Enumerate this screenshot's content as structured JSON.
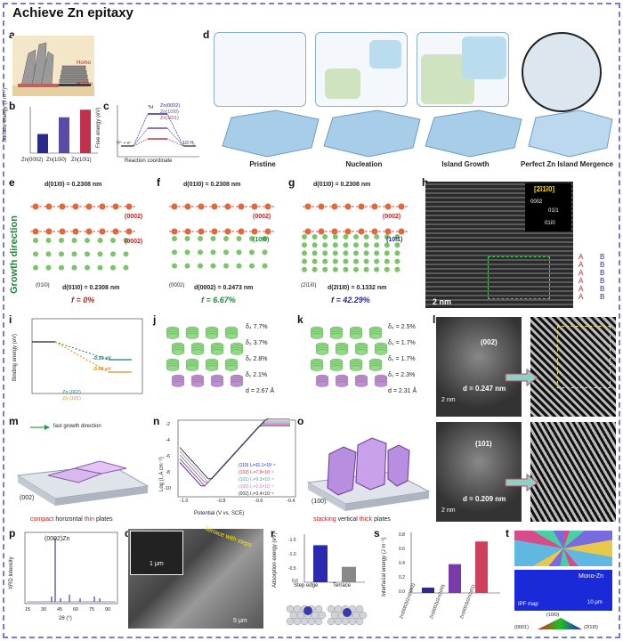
{
  "title": "Achieve Zn epitaxy",
  "panels": {
    "a": "a",
    "b": "b",
    "c": "c",
    "d": "d",
    "e": "e",
    "f": "f",
    "g": "g",
    "h": "h",
    "i": "i",
    "j": "j",
    "k": "k",
    "l": "l",
    "m": "m",
    "n": "n",
    "o": "o",
    "p": "p",
    "q": "q",
    "r": "r",
    "s": "s",
    "t": "t"
  },
  "a": {
    "homo": "Homo",
    "hetero": "Hetero"
  },
  "b": {
    "ylabel": "Surface energy (J m⁻²)",
    "cats": [
      "Zn(0002)",
      "Zn(10ī0)",
      "Zn(10ī1)"
    ],
    "values": [
      0.33,
      0.62,
      0.75
    ],
    "colors": [
      "#2a2a8a",
      "#5b4aa8",
      "#c0304a"
    ]
  },
  "c": {
    "ylabel": "Free energy (eV)",
    "xlabel": "Reaction coordinate",
    "legend": [
      "Zn(0002)",
      "Zn(10ī0)",
      "Zn(10ī1)"
    ],
    "label_h": "H⁺ + e⁻",
    "label_star": "*H",
    "label_half": "1/2 H₂"
  },
  "d": {
    "stages": [
      "Pristine",
      "Nucleation",
      "Island Growth",
      "Perfect Zn Island Mergence"
    ]
  },
  "e": {
    "d_top": "d(01ī0) = 0.2308 nm",
    "d_bottom": "d(01ī0) = 0.2308 nm",
    "plane_top": "(0002)",
    "plane_mid": "(0002)",
    "plane_bottom": "(01ī0)",
    "f": "f = 0%"
  },
  "f": {
    "d_top": "d(01ī0) = 0.2308 nm",
    "d_bottom": "d(0002) = 0.2473 nm",
    "plane_top": "(0002)",
    "plane_mid": "(10ī0)",
    "plane_bottom": "(0002)",
    "f": "f = 6.67%"
  },
  "g": {
    "d_top": "d(01ī0) = 0.2308 nm",
    "d_bottom": "d(2ī1ī0) = 0.1332 nm",
    "plane_top": "(0002)",
    "plane_mid": "(10ī1)",
    "plane_bottom": "(2ī1ī0)",
    "f": "f = 42.29%"
  },
  "growth": "Growth direction",
  "h": {
    "zone": "[2ī1ī0]",
    "p1": "0002",
    "p2": "01ī1",
    "p3": "01ī0",
    "scale": "2 nm",
    "stack": [
      "A",
      "B",
      "A",
      "B",
      "A",
      "B",
      "A",
      "B",
      "A",
      "B",
      "A",
      "B"
    ]
  },
  "i": {
    "ylabel": "Binding energy (eV)",
    "v1": "-0.35 eV",
    "v2": "-0.48 eV",
    "leg1": "Zn (002)",
    "leg2": "Zn (101)"
  },
  "j": {
    "rows": [
      "δ₄ 7.7%",
      "δ₃ 3.7%",
      "δ₂ 2.8%",
      "δ₁ 2.1%",
      "d = 2.67 Å"
    ]
  },
  "k": {
    "rows": [
      "δ₄ = 2.5%",
      "δ₃ = 1.7%",
      "δ₂ = 1.7%",
      "δ₁ = 2.3%",
      "d = 2.31 Å"
    ]
  },
  "l": {
    "top_plane": "(002)",
    "top_d": "d = 0.247 nm",
    "bot_plane": "(101)",
    "bot_d": "d = 0.209 nm",
    "scale": "2 nm"
  },
  "m": {
    "arrow": "fast growth direction",
    "plane": "(002)",
    "caption_pre": "compact",
    "caption_mid": " horizontal ",
    "caption_thin": "thin",
    "caption_post": " plates"
  },
  "n": {
    "ylabel": "Log (I, A cm⁻²)",
    "xlabel": "Potential (V vs. SCE)",
    "legend": [
      "(110)  I₀=11.1×10⁻⁴",
      "(102)  I₀=7.8×10⁻⁴",
      "(101)  I₀=9.3×10⁻⁴",
      "(100)  I₀=2.0×10⁻⁴",
      "(002)  I₀=3.4×10⁻⁴"
    ],
    "xticks": [
      "-1.0",
      "-0.8",
      "-0.6",
      "-0.4"
    ],
    "yticks": [
      "-2",
      "-4",
      "-6",
      "-8",
      "-10"
    ]
  },
  "o": {
    "plane": "(100)",
    "caption_pre": "stacking",
    "caption_mid": " vertical ",
    "caption_thick": "thick",
    "caption_post": " plates"
  },
  "p": {
    "peak": "(0002)Zn",
    "ylabel": "XRD Intensity",
    "xlabel": "2θ (°)",
    "xticks": [
      "15",
      "30",
      "45",
      "60",
      "75",
      "90"
    ]
  },
  "q": {
    "terrace": "Terrace with steps",
    "scale1": "1 μm",
    "scale2": "5 μm"
  },
  "r": {
    "ylabel": "Adsorption energy (eV)",
    "cats": [
      "Step edge",
      "Terrace"
    ],
    "values": [
      -1.2,
      -0.5
    ],
    "yticks": [
      "-1.5",
      "-1.0",
      "-0.5",
      "0.0"
    ]
  },
  "s": {
    "ylabel": "Interfacial energy (J m⁻²)",
    "cats": [
      "Zn(0002)/Zn(0002)",
      "Zn(0002)/Zn(10ī0)",
      "Zn(0002)/Zn(10ī1)"
    ],
    "values": [
      0.07,
      0.38,
      0.68
    ],
    "yticks": [
      "0.0",
      "0.2",
      "0.4",
      "0.6",
      "0.8"
    ]
  },
  "t": {
    "mono": "Mono-Zn",
    "ipf": "IPF map",
    "scale": "10 μm",
    "k1": "(10ī0)",
    "k0": "(0001)",
    "k2": "(2ī1ī0)"
  },
  "chart_data": [
    {
      "type": "bar",
      "panel": "b",
      "categories": [
        "Zn(0002)",
        "Zn(10ī0)",
        "Zn(10ī1)"
      ],
      "values": [
        0.33,
        0.62,
        0.75
      ],
      "ylabel": "Surface energy (J m⁻²)"
    },
    {
      "type": "bar",
      "panel": "r",
      "categories": [
        "Step edge",
        "Terrace"
      ],
      "values": [
        -1.2,
        -0.5
      ],
      "ylabel": "Adsorption energy (eV)",
      "ylim": [
        -1.5,
        0
      ]
    },
    {
      "type": "bar",
      "panel": "s",
      "categories": [
        "Zn(0002)/Zn(0002)",
        "Zn(0002)/Zn(10ī0)",
        "Zn(0002)/Zn(10ī1)"
      ],
      "values": [
        0.07,
        0.38,
        0.68
      ],
      "ylabel": "Interfacial energy (J m⁻²)",
      "ylim": [
        0,
        0.8
      ]
    }
  ]
}
